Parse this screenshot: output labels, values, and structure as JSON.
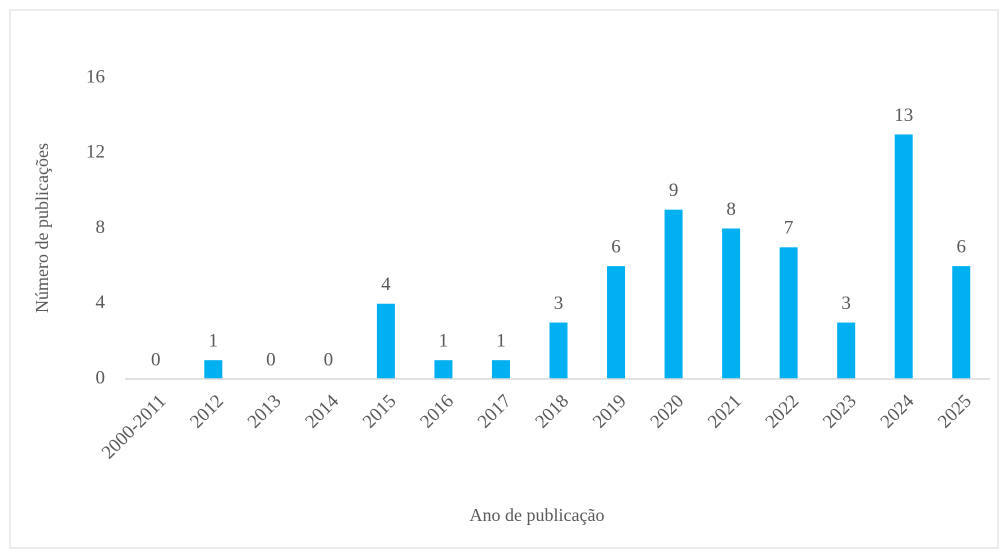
{
  "chart_data": {
    "type": "bar",
    "x_label": "Ano de publicação",
    "y_label": "Número de publicações",
    "categories": [
      "2000-2011",
      "2012",
      "2013",
      "2014",
      "2015",
      "2016",
      "2017",
      "2018",
      "2019",
      "2020",
      "2021",
      "2022",
      "2023",
      "2024",
      "2025"
    ],
    "values": [
      0,
      1,
      0,
      0,
      4,
      1,
      1,
      3,
      6,
      9,
      8,
      7,
      3,
      13,
      6
    ],
    "color": "#00b0f0",
    "ylim": [
      0,
      16
    ],
    "yticks": [
      0,
      4,
      8,
      12,
      16
    ],
    "grid": false
  }
}
